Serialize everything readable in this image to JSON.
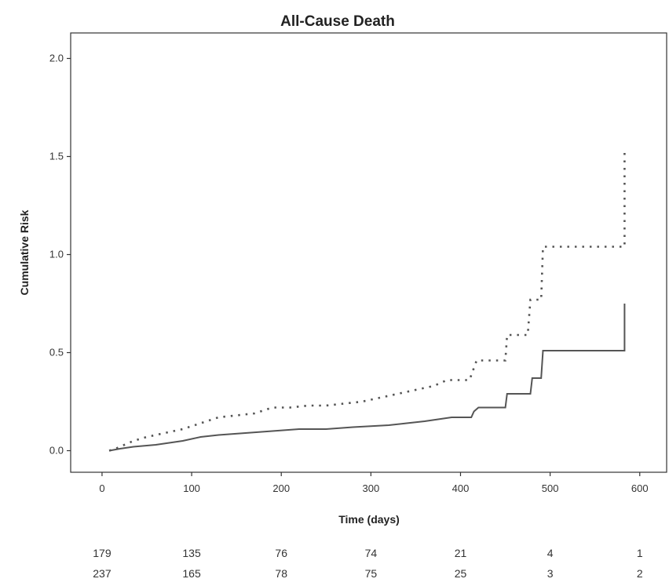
{
  "chart_data": {
    "type": "line",
    "title": "All-Cause Death",
    "xlabel": "Time (days)",
    "ylabel": "Cumulative Risk",
    "xlim": [
      -35,
      630
    ],
    "ylim": [
      -0.11,
      2.13
    ],
    "x_ticks": [
      0,
      100,
      200,
      300,
      400,
      500,
      600
    ],
    "x_tick_labels": [
      "0",
      "100",
      "200",
      "300",
      "400",
      "500",
      "600"
    ],
    "y_ticks": [
      0.0,
      0.5,
      1.0,
      1.5,
      2.0
    ],
    "y_tick_labels": [
      "0.0",
      "0.5",
      "1.0",
      "1.5",
      "2.0"
    ],
    "grid": false,
    "series": [
      {
        "style": "dotted",
        "color": "#555555",
        "points": [
          [
            8,
            0.0
          ],
          [
            15,
            0.01
          ],
          [
            25,
            0.03
          ],
          [
            35,
            0.05
          ],
          [
            50,
            0.07
          ],
          [
            70,
            0.09
          ],
          [
            90,
            0.11
          ],
          [
            110,
            0.14
          ],
          [
            130,
            0.17
          ],
          [
            150,
            0.18
          ],
          [
            170,
            0.19
          ],
          [
            190,
            0.22
          ],
          [
            210,
            0.22
          ],
          [
            230,
            0.23
          ],
          [
            250,
            0.23
          ],
          [
            270,
            0.24
          ],
          [
            290,
            0.25
          ],
          [
            310,
            0.27
          ],
          [
            330,
            0.29
          ],
          [
            350,
            0.31
          ],
          [
            370,
            0.33
          ],
          [
            385,
            0.36
          ],
          [
            410,
            0.36
          ],
          [
            418,
            0.46
          ],
          [
            450,
            0.46
          ],
          [
            452,
            0.59
          ],
          [
            475,
            0.59
          ],
          [
            478,
            0.77
          ],
          [
            490,
            0.77
          ],
          [
            492,
            1.04
          ],
          [
            583,
            1.04
          ],
          [
            583,
            1.53
          ]
        ]
      },
      {
        "style": "solid",
        "color": "#555555",
        "points": [
          [
            8,
            0.0
          ],
          [
            20,
            0.01
          ],
          [
            35,
            0.02
          ],
          [
            60,
            0.03
          ],
          [
            90,
            0.05
          ],
          [
            110,
            0.07
          ],
          [
            130,
            0.08
          ],
          [
            160,
            0.09
          ],
          [
            190,
            0.1
          ],
          [
            220,
            0.11
          ],
          [
            250,
            0.11
          ],
          [
            280,
            0.12
          ],
          [
            320,
            0.13
          ],
          [
            340,
            0.14
          ],
          [
            360,
            0.15
          ],
          [
            375,
            0.16
          ],
          [
            390,
            0.17
          ],
          [
            412,
            0.17
          ],
          [
            415,
            0.2
          ],
          [
            420,
            0.22
          ],
          [
            450,
            0.22
          ],
          [
            452,
            0.29
          ],
          [
            478,
            0.29
          ],
          [
            480,
            0.37
          ],
          [
            490,
            0.37
          ],
          [
            492,
            0.51
          ],
          [
            583,
            0.51
          ],
          [
            583,
            0.75
          ]
        ]
      }
    ],
    "at_risk": {
      "x": [
        0,
        100,
        200,
        300,
        400,
        500,
        600
      ],
      "rows": [
        [
          "179",
          "135",
          "76",
          "74",
          "21",
          "4",
          "1"
        ],
        [
          "237",
          "165",
          "78",
          "75",
          "25",
          "3",
          "2"
        ]
      ]
    }
  }
}
